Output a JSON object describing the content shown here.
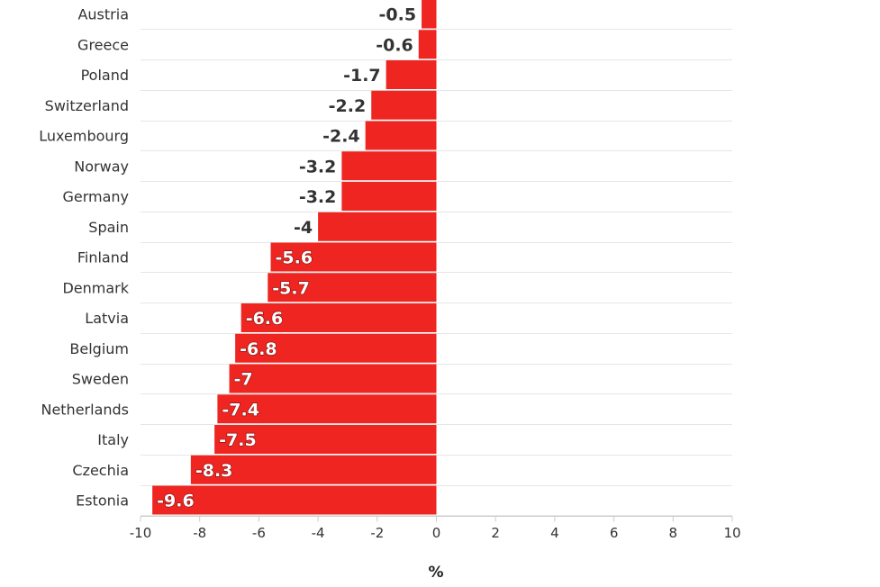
{
  "chart_data": {
    "type": "bar",
    "orientation": "horizontal",
    "categories": [
      "Austria",
      "Greece",
      "Poland",
      "Switzerland",
      "Luxembourg",
      "Norway",
      "Germany",
      "Spain",
      "Finland",
      "Denmark",
      "Latvia",
      "Belgium",
      "Sweden",
      "Netherlands",
      "Italy",
      "Czechia",
      "Estonia"
    ],
    "values": [
      -0.5,
      -0.6,
      -1.7,
      -2.2,
      -2.4,
      -3.2,
      -3.2,
      -4,
      -5.6,
      -5.7,
      -6.6,
      -6.8,
      -7,
      -7.4,
      -7.5,
      -8.3,
      -9.6
    ],
    "value_labels": [
      "-0.5",
      "-0.6",
      "-1.7",
      "-2.2",
      "-2.4",
      "-3.2",
      "-3.2",
      "-4",
      "-5.6",
      "-5.7",
      "-6.6",
      "-6.8",
      "-7",
      "-7.4",
      "-7.5",
      "-8.3",
      "-9.6"
    ],
    "xlabel": "%",
    "xlim": [
      -10,
      10
    ],
    "xticks": [
      -10,
      -8,
      -6,
      -4,
      -2,
      0,
      2,
      4,
      6,
      8,
      10
    ],
    "xtick_labels": [
      "-10",
      "-8",
      "-6",
      "-4",
      "-2",
      "0",
      "2",
      "4",
      "6",
      "8",
      "10"
    ],
    "grid": true,
    "legend": "none",
    "bar_color": "#ee2520"
  }
}
